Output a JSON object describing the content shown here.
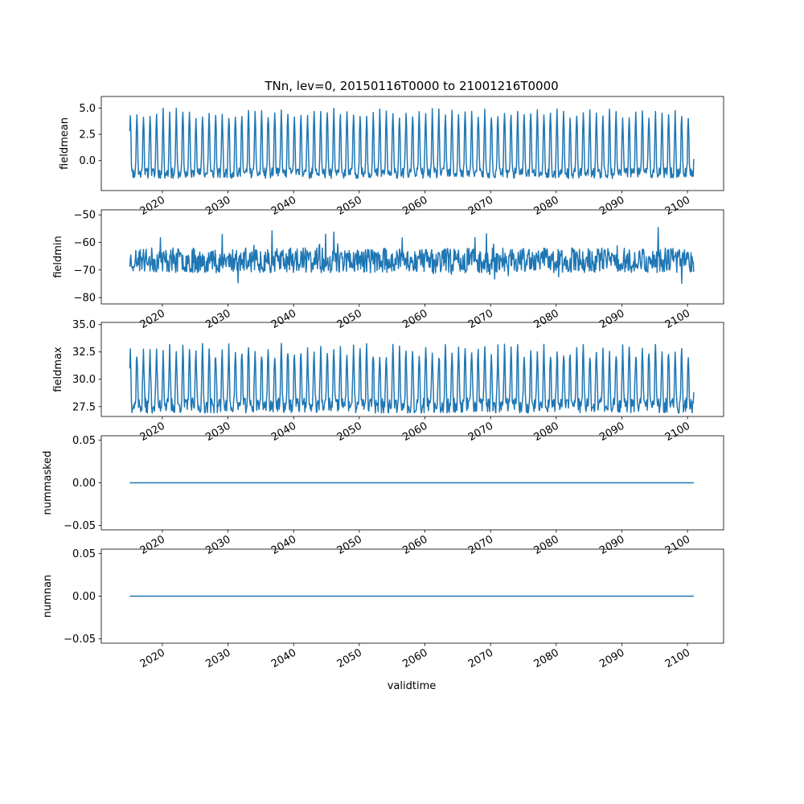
{
  "figure": {
    "title": "TNn, lev=0, 20150116T0000 to 21001216T0000",
    "shared_xlabel": "validtime"
  },
  "chart_data": [
    {
      "type": "line",
      "ylabel": "fieldmean",
      "xlim": [
        2010.7,
        2105.5
      ],
      "ylim": [
        -2.85,
        6.1
      ],
      "yticks": [
        0.0,
        2.5,
        5.0
      ],
      "ytick_labels": [
        "0.0",
        "2.5",
        "5.0"
      ],
      "xticks": [
        2020,
        2030,
        2040,
        2050,
        2060,
        2070,
        2080,
        2090,
        2100
      ],
      "xtick_labels": [
        "2020",
        "2030",
        "2040",
        "2050",
        "2060",
        "2070",
        "2080",
        "2090",
        "2100"
      ],
      "series": [
        {
          "color": "#1f77b4",
          "x_start": 2015.04,
          "x_end": 2100.96,
          "pattern": "seasonal",
          "base": -1.2,
          "peak": 4.5,
          "noise": 0.5,
          "seed": 11
        }
      ]
    },
    {
      "type": "line",
      "ylabel": "fieldmin",
      "xlim": [
        2010.7,
        2105.5
      ],
      "ylim": [
        -82.3,
        -48.2
      ],
      "yticks": [
        -80,
        -70,
        -60,
        -50
      ],
      "ytick_labels": [
        "−80",
        "−70",
        "−60",
        "−50"
      ],
      "xticks": [
        2020,
        2030,
        2040,
        2050,
        2060,
        2070,
        2080,
        2090,
        2100
      ],
      "xtick_labels": [
        "2020",
        "2030",
        "2040",
        "2050",
        "2060",
        "2070",
        "2080",
        "2090",
        "2100"
      ],
      "series": [
        {
          "color": "#1f77b4",
          "x_start": 2015.04,
          "x_end": 2100.96,
          "pattern": "noisy",
          "base": -66.5,
          "peak": 0,
          "noise": 4.5,
          "seed": 23
        }
      ]
    },
    {
      "type": "line",
      "ylabel": "fieldmax",
      "xlim": [
        2010.7,
        2105.5
      ],
      "ylim": [
        26.6,
        35.2
      ],
      "yticks": [
        27.5,
        30.0,
        32.5,
        35.0
      ],
      "ytick_labels": [
        "27.5",
        "30.0",
        "32.5",
        "35.0"
      ],
      "xticks": [
        2020,
        2030,
        2040,
        2050,
        2060,
        2070,
        2080,
        2090,
        2100
      ],
      "xtick_labels": [
        "2020",
        "2030",
        "2040",
        "2050",
        "2060",
        "2070",
        "2080",
        "2090",
        "2100"
      ],
      "series": [
        {
          "color": "#1f77b4",
          "x_start": 2015.04,
          "x_end": 2100.96,
          "pattern": "seasonal",
          "base": 27.6,
          "peak": 32.6,
          "noise": 0.7,
          "seed": 37
        }
      ]
    },
    {
      "type": "line",
      "ylabel": "nummasked",
      "xlim": [
        2010.7,
        2105.5
      ],
      "ylim": [
        -0.055,
        0.055
      ],
      "yticks": [
        -0.05,
        0.0,
        0.05
      ],
      "ytick_labels": [
        "−0.05",
        "0.00",
        "0.05"
      ],
      "xticks": [
        2020,
        2030,
        2040,
        2050,
        2060,
        2070,
        2080,
        2090,
        2100
      ],
      "xtick_labels": [
        "2020",
        "2030",
        "2040",
        "2050",
        "2060",
        "2070",
        "2080",
        "2090",
        "2100"
      ],
      "series": [
        {
          "color": "#1f77b4",
          "x_start": 2015.04,
          "x_end": 2100.96,
          "pattern": "constant",
          "base": 0.0,
          "peak": 0,
          "noise": 0,
          "seed": 1
        }
      ]
    },
    {
      "type": "line",
      "ylabel": "numnan",
      "xlim": [
        2010.7,
        2105.5
      ],
      "ylim": [
        -0.055,
        0.055
      ],
      "yticks": [
        -0.05,
        0.0,
        0.05
      ],
      "ytick_labels": [
        "−0.05",
        "0.00",
        "0.05"
      ],
      "xticks": [
        2020,
        2030,
        2040,
        2050,
        2060,
        2070,
        2080,
        2090,
        2100
      ],
      "xtick_labels": [
        "2020",
        "2030",
        "2040",
        "2050",
        "2060",
        "2070",
        "2080",
        "2090",
        "2100"
      ],
      "series": [
        {
          "color": "#1f77b4",
          "x_start": 2015.04,
          "x_end": 2100.96,
          "pattern": "constant",
          "base": 0.0,
          "peak": 0,
          "noise": 0,
          "seed": 2
        }
      ]
    }
  ]
}
